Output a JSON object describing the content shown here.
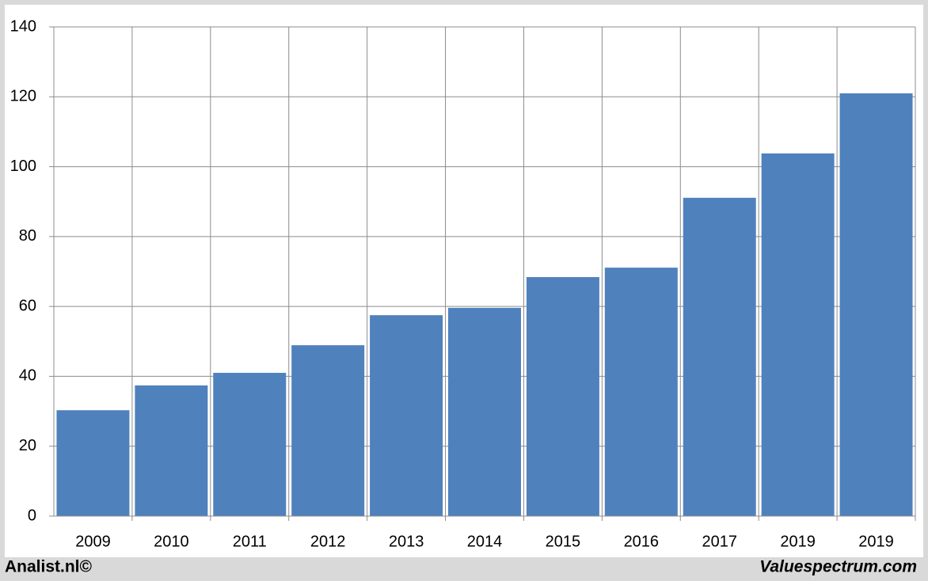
{
  "chart_data": {
    "type": "bar",
    "categories": [
      "2009",
      "2010",
      "2011",
      "2012",
      "2013",
      "2014",
      "2015",
      "2016",
      "2017",
      "2019",
      "2019"
    ],
    "values": [
      30.3,
      37.4,
      41.0,
      48.9,
      57.5,
      59.6,
      68.4,
      71.1,
      91.1,
      103.8,
      121.0
    ],
    "color": "#4f81bd",
    "ylim": [
      0,
      140
    ],
    "yticks": [
      0,
      20,
      40,
      60,
      80,
      100,
      120,
      140
    ],
    "grid": true,
    "footer_left": "Analist.nl©",
    "footer_right": "Valuespectrum.com"
  }
}
